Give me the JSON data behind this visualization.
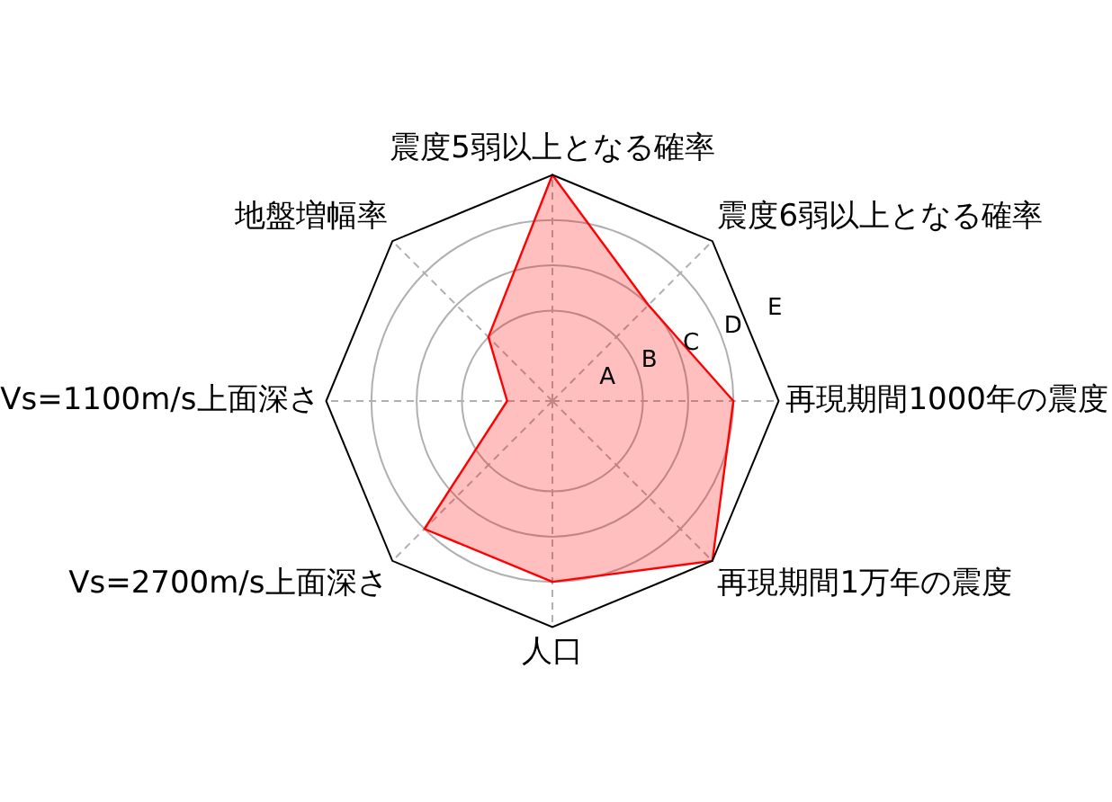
{
  "chart_data": {
    "type": "radar",
    "categories": [
      "震度5弱以上となる確率",
      "震度6弱以上となる確率",
      "再現期間1000年の震度",
      "再現期間1万年の震度",
      "人口",
      "Vs=2700m/s上面深さ",
      "Vs=1100m/s上面深さ",
      "地盤増幅率"
    ],
    "series": [
      {
        "color": "#ff0000",
        "values": [
          5,
          3,
          4,
          5,
          4,
          4,
          1,
          2
        ]
      }
    ],
    "ylim": [
      0,
      5
    ],
    "yticks": [
      {
        "value": 1,
        "label": "A"
      },
      {
        "value": 2,
        "label": "B"
      },
      {
        "value": 3,
        "label": "C"
      },
      {
        "value": 4,
        "label": "D"
      },
      {
        "value": 5,
        "label": "E"
      }
    ],
    "grid": true,
    "marker": "none"
  }
}
